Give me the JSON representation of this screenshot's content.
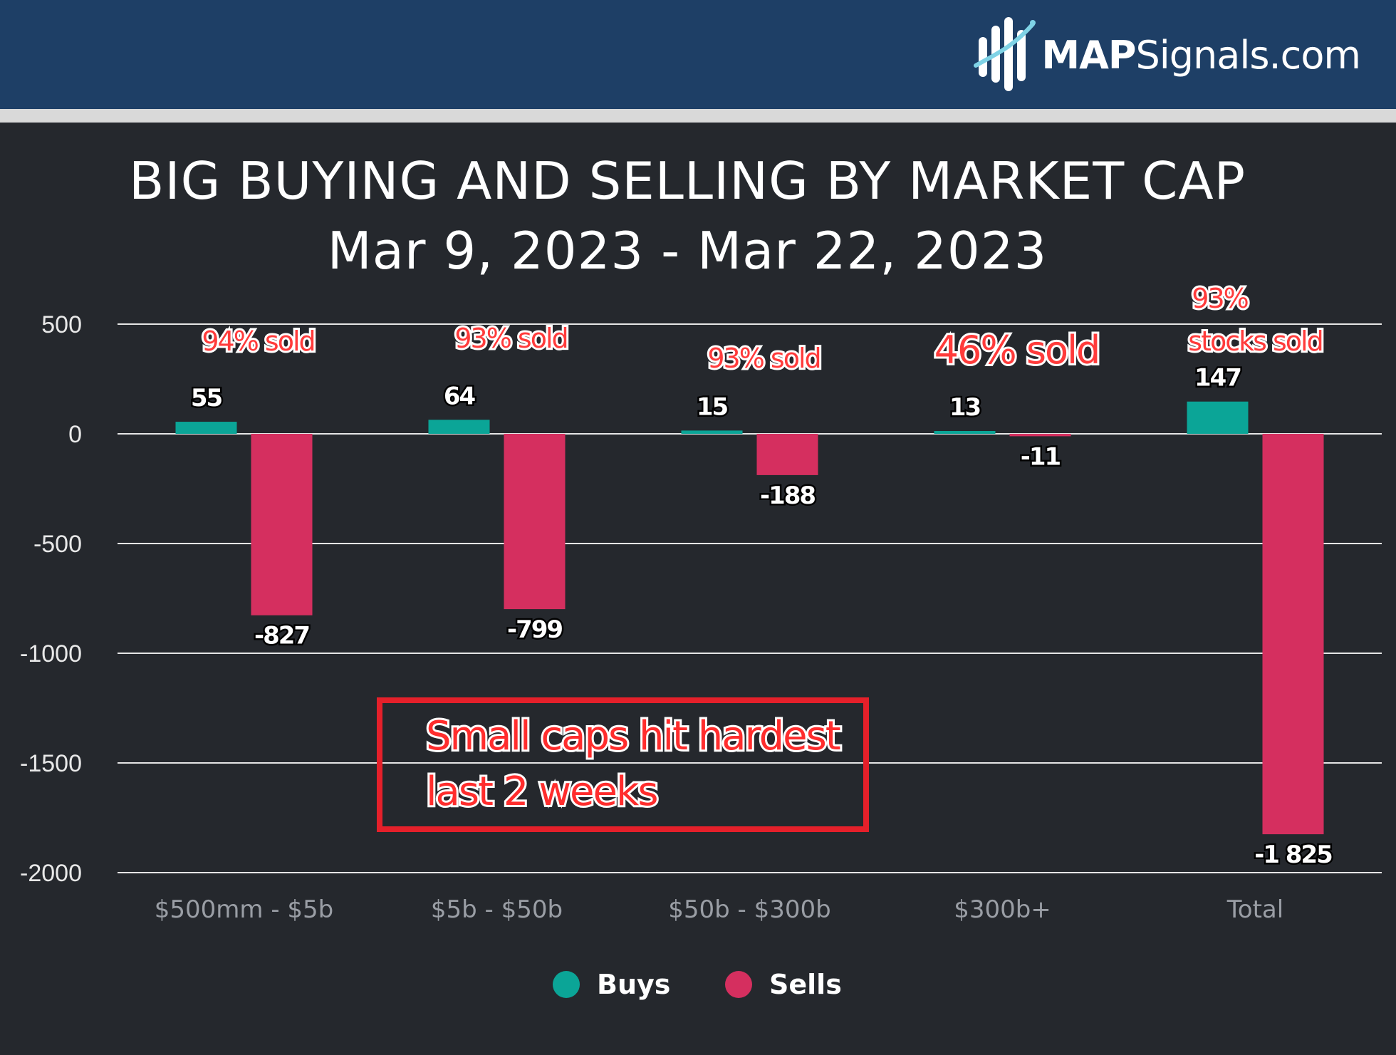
{
  "brand": {
    "bold": "MAP",
    "rest": "Signals.com"
  },
  "chart_data": {
    "type": "bar",
    "title": "BIG BUYING AND SELLING BY MARKET CAP",
    "subtitle": "Mar 9, 2023 - Mar 22, 2023",
    "categories": [
      "$500mm - $5b",
      "$5b - $50b",
      "$50b - $300b",
      "$300b+",
      "Total"
    ],
    "series": [
      {
        "name": "Buys",
        "values": [
          55,
          64,
          15,
          13,
          147
        ],
        "labels": [
          "55",
          "64",
          "15",
          "13",
          "147"
        ],
        "color": "#0ba597"
      },
      {
        "name": "Sells",
        "values": [
          -827,
          -799,
          -188,
          -11,
          -1825
        ],
        "labels": [
          "-827",
          "-799",
          "-188",
          "-11",
          "-1 825"
        ],
        "color": "#d52f5f"
      }
    ],
    "ylim": [
      -2000,
      500
    ],
    "yticks": [
      500,
      0,
      -500,
      -1000,
      -1500,
      -2000
    ],
    "grid": true,
    "legend": "bottom",
    "annotations": {
      "sold": [
        "94% sold",
        "93% sold",
        "93% sold",
        "46% sold"
      ],
      "total": [
        "93%",
        "stocks sold"
      ],
      "callout": [
        "Small caps hit hardest",
        "last 2 weeks"
      ]
    }
  }
}
